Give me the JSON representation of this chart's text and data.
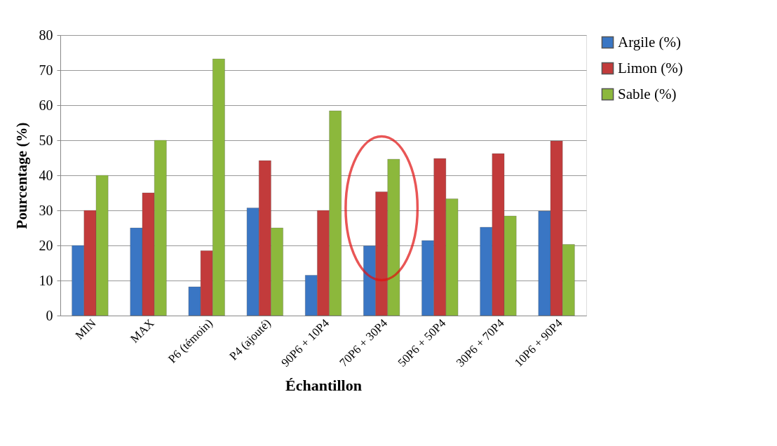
{
  "chart_data": {
    "type": "bar",
    "xlabel": "Échantillon",
    "ylabel": "Pourcentage (%)",
    "categories": [
      "MIN",
      "MAX",
      "P6 (témoin)",
      "P4 (ajouté)",
      "90P6 + 10P4",
      "70P6 + 30P4",
      "50P6 + 50P4",
      "30P6 + 70P4",
      "10P6 + 90P4"
    ],
    "series": [
      {
        "name": "Argile (%)",
        "color": "#3a76c4",
        "values": [
          20,
          25,
          8.2,
          30.7,
          11.5,
          19.9,
          21.4,
          25.2,
          29.8
        ]
      },
      {
        "name": "Limon (%)",
        "color": "#c23b3b",
        "values": [
          30,
          35,
          18.5,
          44.2,
          30,
          35.3,
          44.8,
          46.2,
          49.8
        ]
      },
      {
        "name": "Sable (%)",
        "color": "#8cb83c",
        "values": [
          40,
          50,
          73.2,
          25,
          58.4,
          44.6,
          33.3,
          28.4,
          20.3
        ]
      }
    ],
    "ylim": [
      0,
      80
    ],
    "yticks": [
      0,
      10,
      20,
      30,
      40,
      50,
      60,
      70,
      80
    ],
    "grid": "y",
    "legend": "right"
  }
}
